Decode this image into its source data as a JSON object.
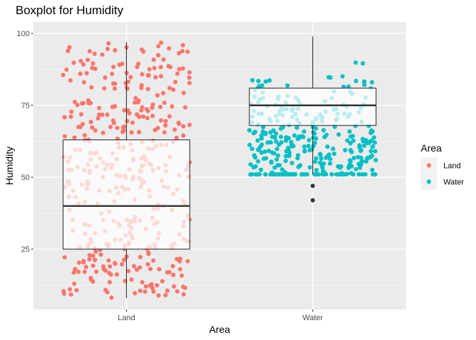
{
  "chart_data": {
    "type": "boxplot",
    "title": "Boxplot for Humidity",
    "xlabel": "Area",
    "ylabel": "Humidity",
    "ylim": [
      4,
      104
    ],
    "yticks": [
      25,
      50,
      75,
      100
    ],
    "categories": [
      "Land",
      "Water"
    ],
    "grid": true,
    "legend": {
      "title": "Area",
      "placement": "right",
      "entries": [
        {
          "label": "Land",
          "color": "#F8766D"
        },
        {
          "label": "Water",
          "color": "#00BFC4"
        }
      ]
    },
    "boxes": [
      {
        "category": "Land",
        "whisker_low": 8,
        "q1": 25,
        "median": 40,
        "q3": 63,
        "whisker_high": 97,
        "outliers": []
      },
      {
        "category": "Water",
        "whisker_low": 51,
        "q1": 68,
        "median": 75,
        "q3": 81,
        "whisker_high": 99,
        "outliers": [
          47,
          42
        ]
      }
    ],
    "points": [
      {
        "category": "Land",
        "n": 420,
        "distribution": "uniform",
        "min": 8,
        "max": 97
      },
      {
        "category": "Water",
        "n": 330,
        "distribution": "beta",
        "min": 42,
        "max": 99
      }
    ]
  }
}
